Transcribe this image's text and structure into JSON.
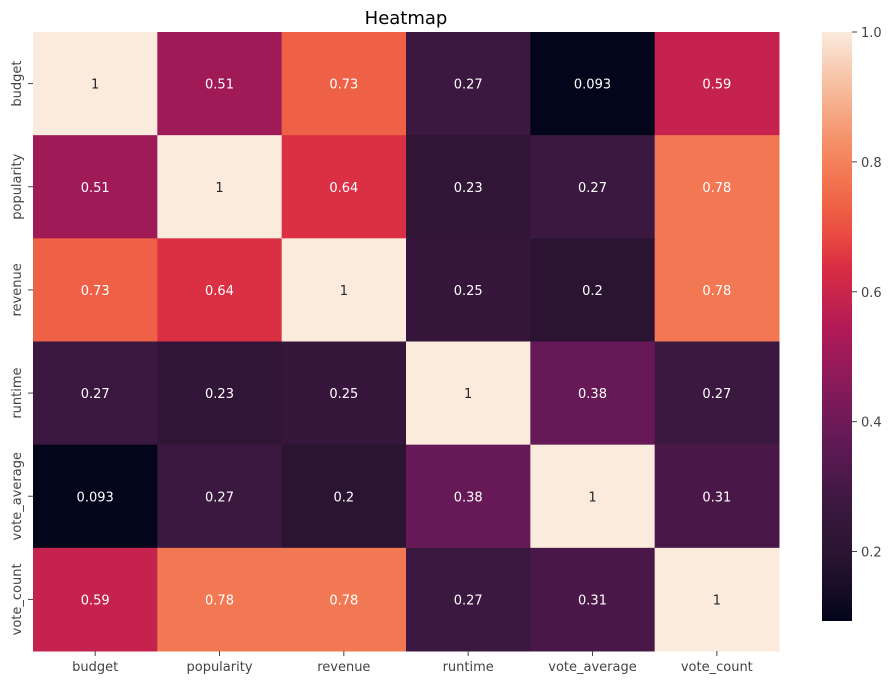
{
  "chart_data": {
    "type": "heatmap",
    "title": "Heatmap",
    "rows": [
      "budget",
      "popularity",
      "revenue",
      "runtime",
      "vote_average",
      "vote_count"
    ],
    "columns": [
      "budget",
      "popularity",
      "revenue",
      "runtime",
      "vote_average",
      "vote_count"
    ],
    "values": [
      [
        1,
        0.51,
        0.73,
        0.27,
        0.093,
        0.59
      ],
      [
        0.51,
        1,
        0.64,
        0.23,
        0.27,
        0.78
      ],
      [
        0.73,
        0.64,
        1,
        0.25,
        0.2,
        0.78
      ],
      [
        0.27,
        0.23,
        0.25,
        1,
        0.38,
        0.27
      ],
      [
        0.093,
        0.27,
        0.2,
        0.38,
        1,
        0.31
      ],
      [
        0.59,
        0.78,
        0.78,
        0.27,
        0.31,
        1
      ]
    ],
    "labels": [
      [
        "1",
        "0.51",
        "0.73",
        "0.27",
        "0.093",
        "0.59"
      ],
      [
        "0.51",
        "1",
        "0.64",
        "0.23",
        "0.27",
        "0.78"
      ],
      [
        "0.73",
        "0.64",
        "1",
        "0.25",
        "0.2",
        "0.78"
      ],
      [
        "0.27",
        "0.23",
        "0.25",
        "1",
        "0.38",
        "0.27"
      ],
      [
        "0.093",
        "0.27",
        "0.2",
        "0.38",
        "1",
        "0.31"
      ],
      [
        "0.59",
        "0.78",
        "0.78",
        "0.27",
        "0.31",
        "1"
      ]
    ],
    "colorbar": {
      "vmin": 0.093,
      "vmax": 1,
      "ticks": [
        0.2,
        0.4,
        0.6,
        0.8,
        1.0
      ],
      "tick_labels": [
        "0.2",
        "0.4",
        "0.6",
        "0.8",
        "1.0"
      ],
      "colormap": "rocket"
    }
  }
}
